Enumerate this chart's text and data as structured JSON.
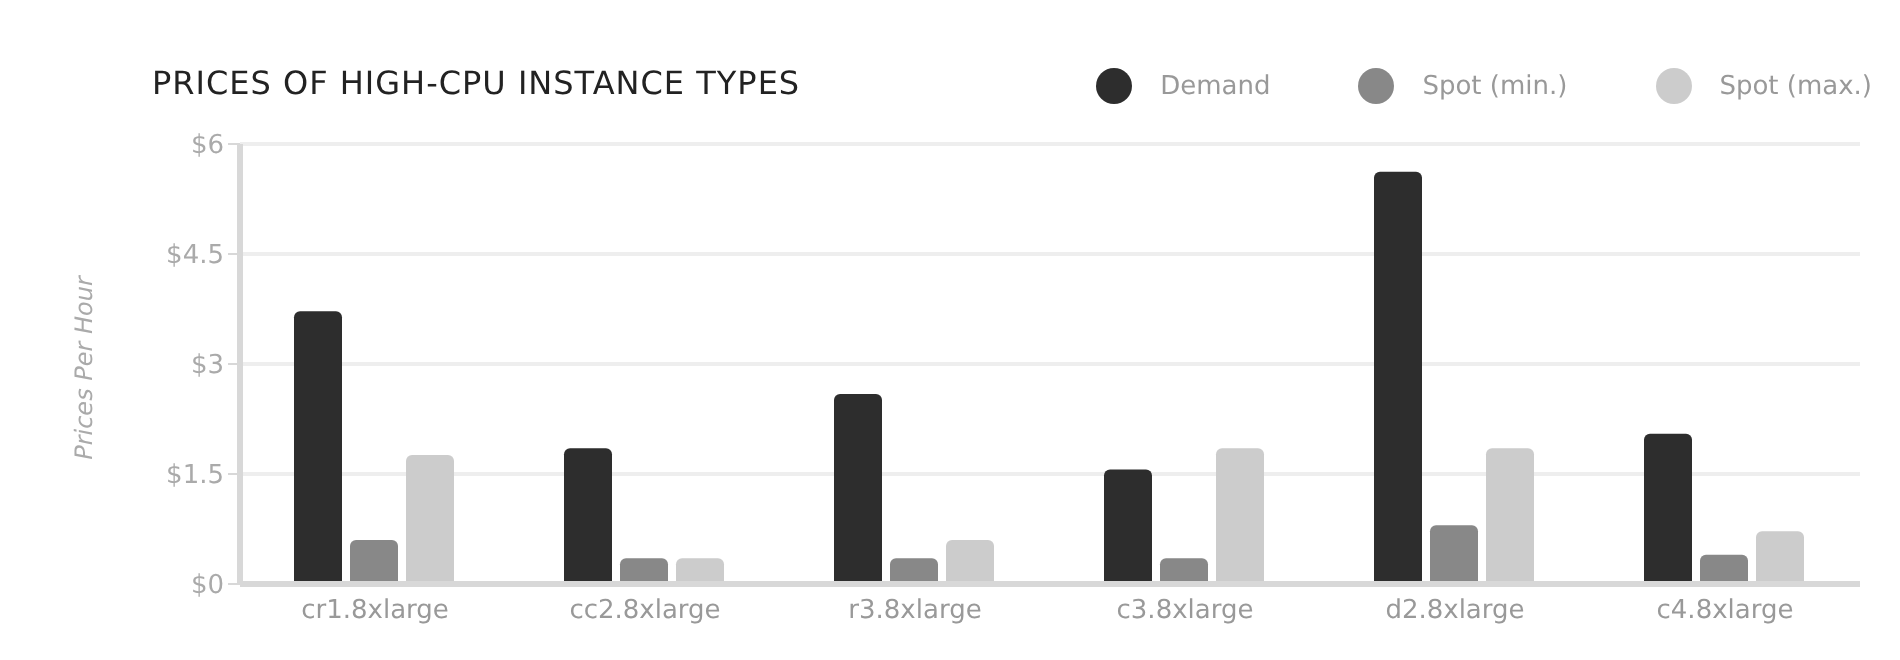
{
  "chart_data": {
    "type": "bar",
    "title": "PRICES OF HIGH-CPU INSTANCE TYPES",
    "ylabel": "Prices Per Hour",
    "categories": [
      "cr1.8xlarge",
      "cc2.8xlarge",
      "r3.8xlarge",
      "c3.8xlarge",
      "d2.8xlarge",
      "c4.8xlarge"
    ],
    "series": [
      {
        "name": "Demand",
        "color": "#2d2d2d",
        "values": [
          3.72,
          1.85,
          2.59,
          1.56,
          5.62,
          2.05
        ]
      },
      {
        "name": "Spot (min.)",
        "color": "#888888",
        "values": [
          0.6,
          0.35,
          0.35,
          0.35,
          0.8,
          0.4
        ]
      },
      {
        "name": "Spot (max.)",
        "color": "#cccccc",
        "values": [
          1.76,
          0.35,
          0.6,
          1.85,
          1.85,
          0.72
        ]
      }
    ],
    "ylim": [
      0,
      6
    ],
    "yticks": [
      {
        "value": 0,
        "label": "$0"
      },
      {
        "value": 1.5,
        "label": "$1.5"
      },
      {
        "value": 3,
        "label": "$3"
      },
      {
        "value": 4.5,
        "label": "$4.5"
      },
      {
        "value": 6,
        "label": "$6"
      }
    ],
    "grid": "y",
    "legend": "top right"
  }
}
